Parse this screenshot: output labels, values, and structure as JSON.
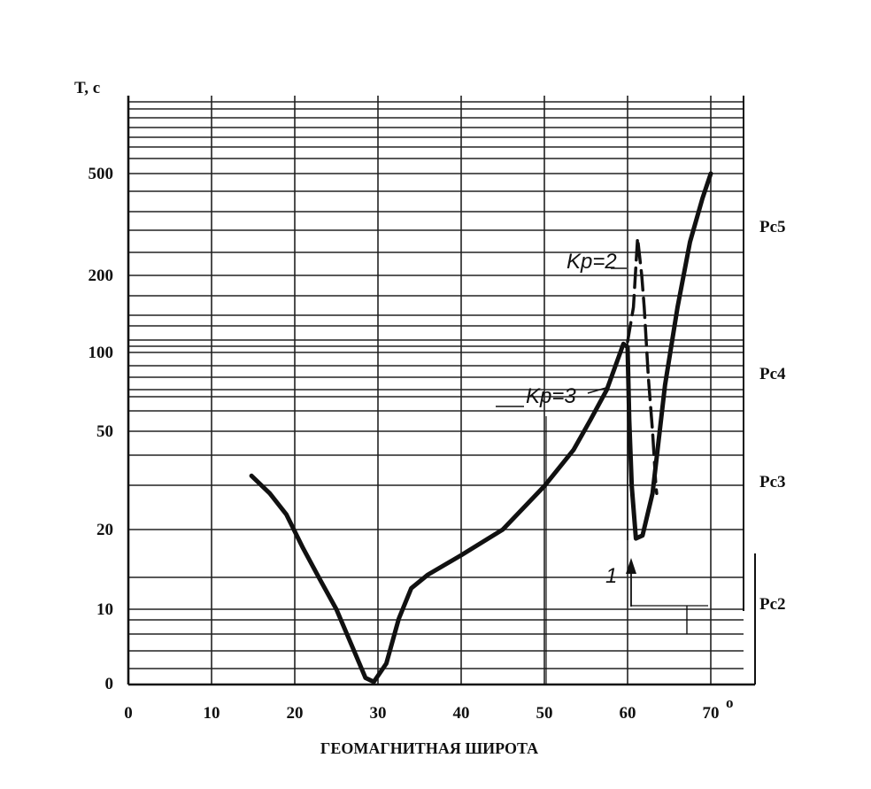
{
  "chart_data": {
    "type": "line",
    "ylabel": "T, c",
    "xlabel": "ГЕОМАГНИТНАЯ ШИРОТА",
    "x_ticks": [
      "0",
      "10",
      "20",
      "30",
      "40",
      "50",
      "60",
      "70"
    ],
    "x_unit_mark": "o",
    "y_ticks": [
      "0",
      "10",
      "20",
      "50",
      "100",
      "200",
      "500"
    ],
    "xlim": [
      0,
      75
    ],
    "ylim": [
      0,
      500
    ],
    "y_scale": "log (hand-drawn grid)",
    "grid": true,
    "band_labels": [
      {
        "label": "Pc5",
        "y": 280
      },
      {
        "label": "Pc4",
        "y": 75
      },
      {
        "label": "Pc3",
        "y": 32
      },
      {
        "label": "Pc2",
        "y": 10
      }
    ],
    "series": [
      {
        "name": "Kp=3",
        "style": "solid",
        "points": [
          [
            14.8,
            33
          ],
          [
            17,
            28
          ],
          [
            19,
            23
          ],
          [
            21,
            17
          ],
          [
            23,
            13
          ],
          [
            25,
            10
          ],
          [
            27,
            6.5
          ],
          [
            28.5,
            4.7
          ],
          [
            29.5,
            4.5
          ],
          [
            31,
            5.5
          ],
          [
            32.5,
            9
          ],
          [
            34,
            12
          ],
          [
            36,
            13.5
          ],
          [
            40,
            16
          ],
          [
            45,
            20
          ],
          [
            50,
            30
          ],
          [
            53.5,
            42
          ],
          [
            55.5,
            55
          ],
          [
            57.5,
            72
          ],
          [
            59.5,
            108
          ],
          [
            60,
            105
          ],
          [
            60.2,
            55
          ],
          [
            60.5,
            30
          ],
          [
            61,
            18.5
          ],
          [
            61.8,
            19
          ],
          [
            63,
            28
          ],
          [
            64.5,
            75
          ],
          [
            66,
            150
          ],
          [
            67.5,
            270
          ],
          [
            69,
            400
          ],
          [
            70,
            500
          ]
        ]
      },
      {
        "name": "Kp=2",
        "style": "dashed",
        "points": [
          [
            60,
            110
          ],
          [
            60.7,
            150
          ],
          [
            61.2,
            280
          ],
          [
            61.7,
            200
          ],
          [
            62,
            150
          ],
          [
            62.5,
            80
          ],
          [
            63,
            50
          ],
          [
            63.4,
            30
          ],
          [
            63.5,
            28
          ]
        ]
      }
    ],
    "annotations": [
      {
        "text": "Kp=2",
        "x": 59,
        "y": 230
      },
      {
        "text": "Kp=3",
        "x": 55,
        "y": 80
      },
      {
        "text": "1",
        "x": 59,
        "y": 14
      }
    ]
  }
}
